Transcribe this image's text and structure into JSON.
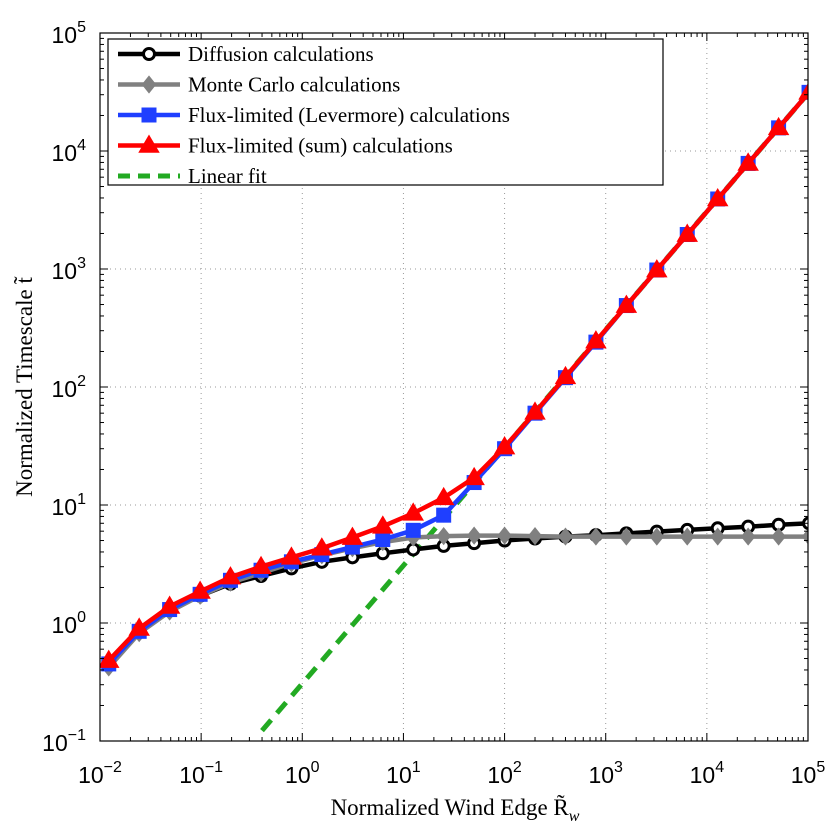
{
  "chart_data": {
    "type": "line",
    "title": "",
    "xlabel": "Normalized Wind Edge R̃",
    "xlabel_sub": "w",
    "ylabel": "Normalized Timescale t̃",
    "xscale": "log",
    "yscale": "log",
    "xlim": [
      0.01,
      100000
    ],
    "ylim": [
      0.1,
      100000
    ],
    "grid": true,
    "legend_position": "top-left",
    "x_ticks": [
      {
        "base": "10",
        "exp": "−2"
      },
      {
        "base": "10",
        "exp": "−1"
      },
      {
        "base": "10",
        "exp": "0"
      },
      {
        "base": "10",
        "exp": "1"
      },
      {
        "base": "10",
        "exp": "2"
      },
      {
        "base": "10",
        "exp": "3"
      },
      {
        "base": "10",
        "exp": "4"
      },
      {
        "base": "10",
        "exp": "5"
      }
    ],
    "y_ticks": [
      {
        "base": "10",
        "exp": "−1"
      },
      {
        "base": "10",
        "exp": "0"
      },
      {
        "base": "10",
        "exp": "1"
      },
      {
        "base": "10",
        "exp": "2"
      },
      {
        "base": "10",
        "exp": "3"
      },
      {
        "base": "10",
        "exp": "4"
      },
      {
        "base": "10",
        "exp": "5"
      }
    ],
    "series": [
      {
        "name": "Diffusion calculations",
        "color": "#000000",
        "marker": "circle",
        "x": [
          0.0122,
          0.0244,
          0.0488,
          0.0977,
          0.195,
          0.391,
          0.781,
          1.56,
          3.13,
          6.25,
          12.5,
          25,
          50,
          100,
          200,
          400,
          800,
          1600,
          3200,
          6400,
          12800,
          25600,
          51200,
          102400
        ],
        "y": [
          0.45,
          0.85,
          1.3,
          1.7,
          2.15,
          2.5,
          2.9,
          3.3,
          3.6,
          3.9,
          4.2,
          4.5,
          4.75,
          5.0,
          5.2,
          5.4,
          5.55,
          5.75,
          5.95,
          6.15,
          6.35,
          6.55,
          6.8,
          7.0
        ]
      },
      {
        "name": "Monte Carlo calculations",
        "color": "#808080",
        "marker": "diamond",
        "x": [
          0.0122,
          0.0244,
          0.0488,
          0.0977,
          0.195,
          0.391,
          0.781,
          1.56,
          3.13,
          6.25,
          12.5,
          25,
          50,
          100,
          200,
          400,
          800,
          1600,
          3200,
          6400,
          12800,
          25600,
          51200,
          102400
        ],
        "y": [
          0.42,
          0.82,
          1.25,
          1.7,
          2.2,
          2.65,
          3.2,
          3.75,
          4.3,
          4.85,
          5.3,
          5.45,
          5.5,
          5.5,
          5.45,
          5.4,
          5.4,
          5.4,
          5.4,
          5.4,
          5.4,
          5.4,
          5.4,
          5.4
        ]
      },
      {
        "name": "Flux-limited (Levermore) calculations",
        "color": "#1f3fff",
        "marker": "square",
        "x": [
          0.0122,
          0.0244,
          0.0488,
          0.0977,
          0.195,
          0.391,
          0.781,
          1.56,
          3.13,
          6.25,
          12.5,
          25,
          50,
          100,
          200,
          400,
          800,
          1600,
          3200,
          6400,
          12800,
          25600,
          51200,
          102400
        ],
        "y": [
          0.45,
          0.85,
          1.3,
          1.75,
          2.3,
          2.8,
          3.3,
          3.8,
          4.4,
          5.1,
          6.1,
          8.2,
          15.5,
          30,
          60,
          120,
          240,
          490,
          980,
          1960,
          3920,
          7850,
          15700,
          31400
        ]
      },
      {
        "name": "Flux-limited (sum) calculations",
        "color": "#ff0000",
        "marker": "triangle",
        "x": [
          0.0122,
          0.0244,
          0.0488,
          0.0977,
          0.195,
          0.391,
          0.781,
          1.56,
          3.13,
          6.25,
          12.5,
          25,
          50,
          100,
          200,
          400,
          800,
          1600,
          3200,
          6400,
          12800,
          25600,
          51200,
          102400
        ],
        "y": [
          0.48,
          0.9,
          1.38,
          1.85,
          2.45,
          3.0,
          3.6,
          4.3,
          5.3,
          6.6,
          8.5,
          11.5,
          17,
          31,
          61,
          122,
          245,
          490,
          980,
          1960,
          3920,
          7850,
          15700,
          31400
        ]
      },
      {
        "name": "Linear fit",
        "color": "#22aa22",
        "marker": "none",
        "dashed": true,
        "x": [
          0.4,
          102400
        ],
        "y": [
          0.1225,
          31360
        ]
      }
    ]
  }
}
